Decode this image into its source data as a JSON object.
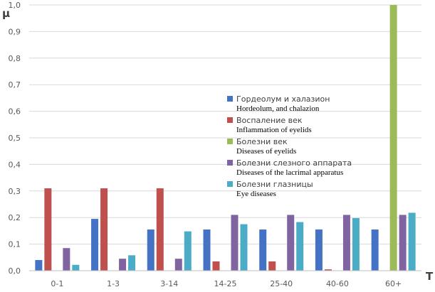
{
  "chart_data": {
    "type": "bar",
    "ylabel": "μ",
    "xlabel": "T",
    "ylim": [
      0,
      1.0
    ],
    "yticks": [
      "0,0",
      "0,1",
      "0,2",
      "0,3",
      "0,4",
      "0,5",
      "0,6",
      "0,7",
      "0,8",
      "0,9",
      "1,0"
    ],
    "categories": [
      "0-1",
      "1-3",
      "3-14",
      "14-25",
      "25-40",
      "40-60",
      "60+"
    ],
    "grid": "horizontal",
    "legend_position": "center-right",
    "series": [
      {
        "name": "Гордеолум и халазион",
        "name_en": "Hordeolum, and chalazion",
        "color": "#4472C4",
        "values": [
          0.04,
          0.195,
          0.155,
          0.155,
          0.155,
          0.155,
          0.155
        ]
      },
      {
        "name": "Воспаление век",
        "name_en": "Inflammation of eyelids",
        "color": "#C0504D",
        "values": [
          0.31,
          0.31,
          0.31,
          0.035,
          0.035,
          0.005,
          0
        ]
      },
      {
        "name": "Болезни век",
        "name_en": "Diseases of eyelids",
        "color": "#9BBB59",
        "values": [
          0,
          0,
          0,
          0,
          0,
          0,
          1.0
        ]
      },
      {
        "name": "Болезни слезного аппарата",
        "name_en": "Diseases of the lacrimal apparatus",
        "color": "#8064A2",
        "values": [
          0.085,
          0.045,
          0.045,
          0.21,
          0.21,
          0.21,
          0.21
        ]
      },
      {
        "name": "Болезни глазницы",
        "name_en": "Eye diseases",
        "color": "#4BACC6",
        "values": [
          0.022,
          0.058,
          0.148,
          0.175,
          0.183,
          0.198,
          0.218
        ]
      }
    ]
  }
}
